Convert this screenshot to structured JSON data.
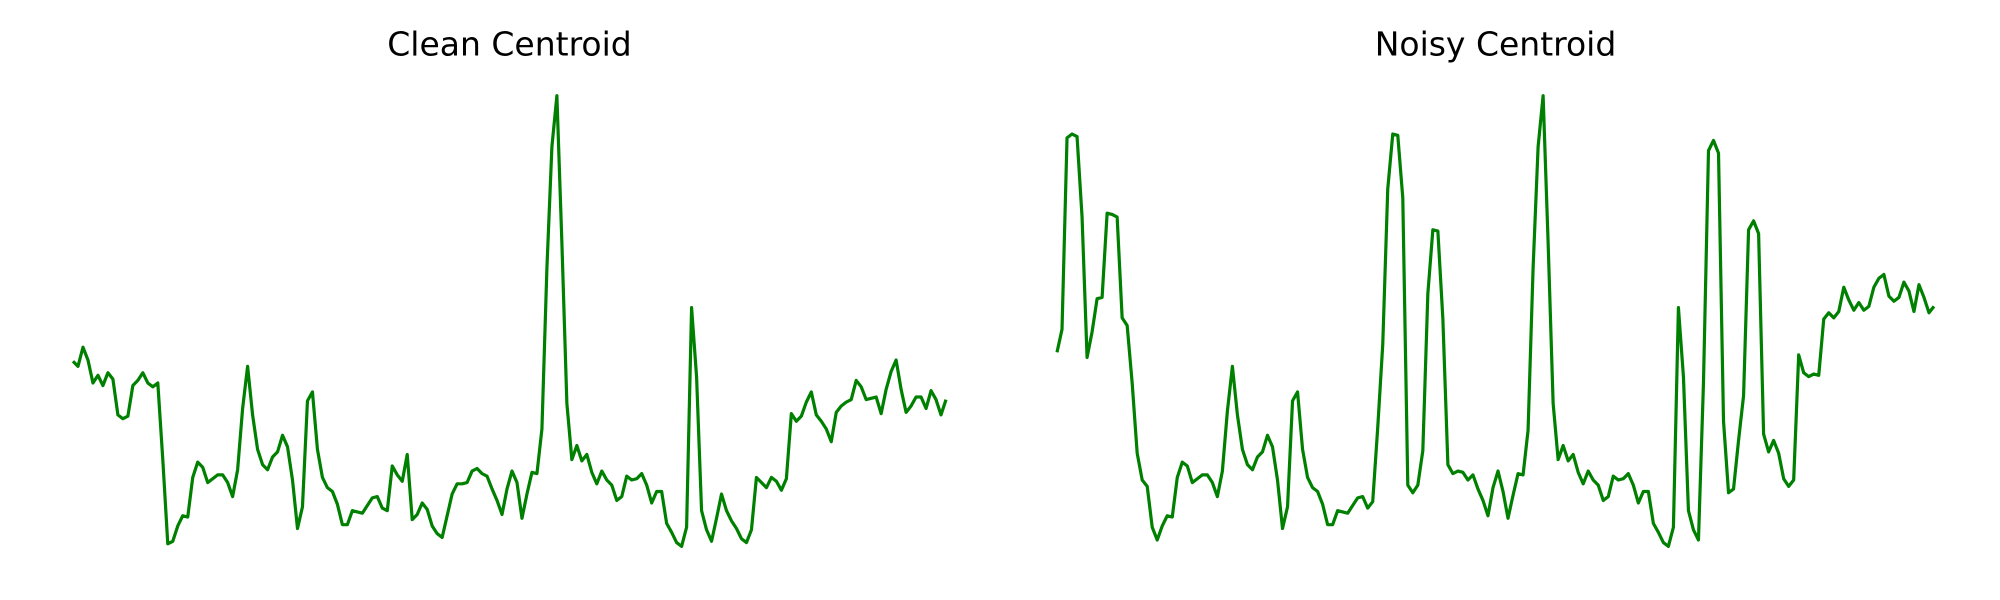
{
  "chart_data": [
    {
      "type": "line",
      "title": "Clean Centroid",
      "ylim": [
        -20,
        450
      ],
      "series": [
        {
          "color": "#008000",
          "values": [
            167,
            163,
            178,
            168,
            150,
            156,
            148,
            158,
            153,
            125,
            122,
            124,
            148,
            152,
            158,
            150,
            147,
            150,
            90,
            24,
            26,
            38,
            46,
            45,
            76,
            88,
            84,
            72,
            75,
            78,
            78,
            72,
            61,
            82,
            130,
            163,
            125,
            98,
            86,
            82,
            92,
            96,
            109,
            100,
            74,
            36,
            53,
            136,
            143,
            98,
            76,
            68,
            65,
            55,
            39,
            39,
            50,
            49,
            48,
            54,
            60,
            61,
            52,
            50,
            85,
            78,
            73,
            94,
            43,
            47,
            56,
            51,
            38,
            32,
            29,
            46,
            63,
            71,
            71,
            72,
            81,
            83,
            79,
            77,
            67,
            58,
            47,
            67,
            81,
            72,
            44,
            63,
            80,
            79,
            114,
            240,
            335,
            375,
            260,
            134,
            90,
            101,
            89,
            94,
            80,
            71,
            81,
            74,
            70,
            58,
            61,
            77,
            74,
            75,
            79,
            70,
            56,
            65,
            65,
            40,
            33,
            25,
            22,
            37,
            209,
            155,
            50,
            35,
            26,
            44,
            63,
            50,
            42,
            36,
            28,
            25,
            35,
            76,
            72,
            68,
            76,
            73,
            66,
            75,
            126,
            120,
            124,
            135,
            143,
            125,
            120,
            114,
            104,
            127,
            132,
            135,
            137,
            152,
            147,
            137,
            138,
            139,
            126,
            145,
            159,
            168,
            145,
            127,
            132,
            139,
            139,
            130,
            144,
            137,
            125,
            137
          ]
        }
      ]
    },
    {
      "type": "line",
      "title": "Noisy Centroid",
      "ylim": [
        -20,
        450
      ],
      "series": [
        {
          "color": "#008000",
          "values": [
            174,
            192,
            342,
            345,
            343,
            280,
            170,
            190,
            216,
            217,
            283,
            282,
            280,
            201,
            195,
            150,
            95,
            74,
            69,
            37,
            27,
            38,
            46,
            45,
            76,
            88,
            85,
            72,
            75,
            78,
            78,
            72,
            61,
            81,
            128,
            163,
            125,
            98,
            86,
            82,
            92,
            96,
            109,
            100,
            74,
            36,
            53,
            136,
            143,
            98,
            76,
            68,
            65,
            55,
            39,
            39,
            50,
            49,
            48,
            54,
            60,
            61,
            52,
            57,
            115,
            180,
            302,
            345,
            344,
            295,
            70,
            64,
            70,
            97,
            220,
            270,
            269,
            200,
            86,
            79,
            81,
            80,
            74,
            78,
            67,
            58,
            46,
            68,
            81,
            65,
            44,
            62,
            79,
            78,
            113,
            240,
            335,
            375,
            260,
            134,
            90,
            101,
            89,
            94,
            80,
            71,
            81,
            74,
            70,
            58,
            61,
            77,
            74,
            75,
            79,
            70,
            56,
            65,
            65,
            40,
            33,
            25,
            22,
            37,
            209,
            155,
            50,
            35,
            27,
            150,
            332,
            340,
            330,
            120,
            64,
            67,
            105,
            140,
            270,
            277,
            267,
            110,
            96,
            105,
            95,
            75,
            69,
            74,
            172,
            158,
            155,
            157,
            156,
            200,
            205,
            201,
            206,
            225,
            215,
            207,
            213,
            207,
            210,
            225,
            232,
            235,
            218,
            214,
            217,
            229,
            222,
            206,
            227,
            217,
            205,
            210
          ]
        }
      ]
    }
  ]
}
